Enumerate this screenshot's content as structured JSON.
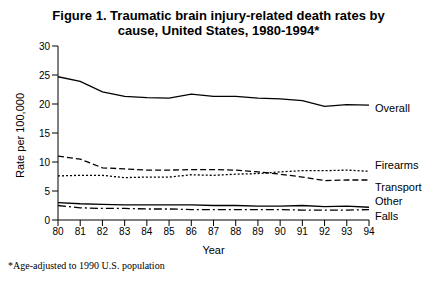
{
  "chart_data": {
    "type": "line",
    "title": "Figure 1. Traumatic brain injury-related death rates by cause, United States, 1980-1994*",
    "footnote": "*Age-adjusted to 1990 U.S. population",
    "x_label": "Year",
    "y_label": "Rate per 100,000",
    "x": [
      80,
      81,
      82,
      83,
      84,
      85,
      86,
      87,
      88,
      89,
      90,
      91,
      92,
      93,
      94
    ],
    "xlim": [
      80,
      94
    ],
    "xticks": [
      80,
      81,
      82,
      83,
      84,
      85,
      86,
      87,
      88,
      89,
      90,
      91,
      92,
      93,
      94
    ],
    "ylim": [
      0,
      30
    ],
    "yticks": [
      0,
      5,
      10,
      15,
      20,
      25,
      30
    ],
    "grid": false,
    "series": [
      {
        "name": "Overall",
        "color": "#000000",
        "line_style": "solid",
        "values": [
          24.7,
          23.9,
          22.1,
          21.3,
          21.1,
          21.0,
          21.7,
          21.3,
          21.3,
          21.0,
          20.9,
          20.6,
          19.6,
          19.9,
          19.8
        ]
      },
      {
        "name": "Firearms",
        "color": "#000000",
        "line_style": "dotted",
        "values": [
          7.6,
          7.7,
          7.7,
          7.3,
          7.4,
          7.4,
          7.8,
          7.7,
          7.9,
          8.0,
          8.3,
          8.5,
          8.5,
          8.6,
          8.4
        ]
      },
      {
        "name": "Transport",
        "color": "#000000",
        "line_style": "dashed",
        "values": [
          11.0,
          10.5,
          9.0,
          8.8,
          8.6,
          8.6,
          8.7,
          8.7,
          8.6,
          8.3,
          7.9,
          7.4,
          6.8,
          6.9,
          6.9
        ]
      },
      {
        "name": "Other",
        "color": "#000000",
        "line_style": "solid",
        "values": [
          3.0,
          2.8,
          2.7,
          2.6,
          2.6,
          2.6,
          2.6,
          2.5,
          2.5,
          2.4,
          2.4,
          2.5,
          2.3,
          2.4,
          2.2
        ]
      },
      {
        "name": "Falls",
        "color": "#000000",
        "line_style": "dashdot",
        "values": [
          2.5,
          2.1,
          2.0,
          2.0,
          1.9,
          1.9,
          1.8,
          1.8,
          1.8,
          1.8,
          1.8,
          1.7,
          1.7,
          1.7,
          1.8
        ]
      }
    ]
  }
}
